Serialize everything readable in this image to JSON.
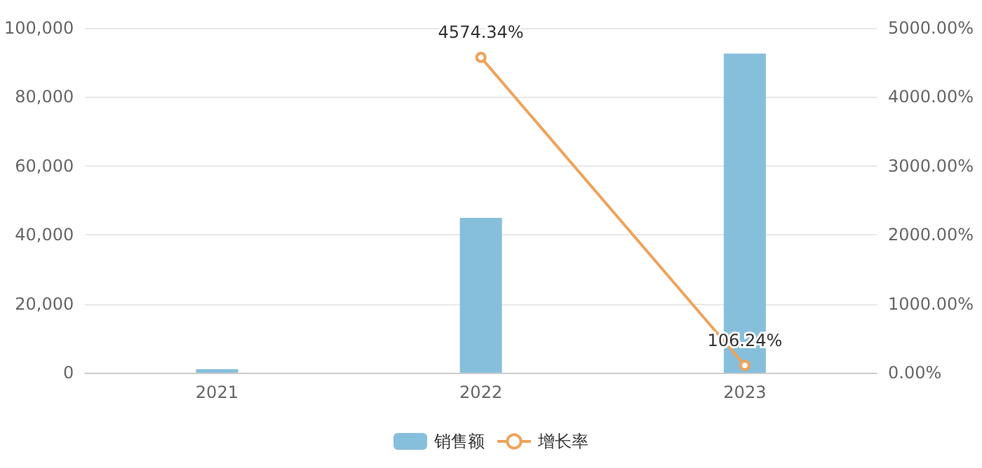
{
  "chart_data": {
    "type": "bar",
    "categories": [
      "2021",
      "2022",
      "2023"
    ],
    "series": [
      {
        "name": "销售额",
        "color": "#86bfdc",
        "values": [
          1000,
          44900,
          92600
        ]
      },
      {
        "name": "增长率",
        "type": "line",
        "axis": "y2",
        "color": "#eea35b",
        "values": [
          null,
          4574.34,
          106.24
        ],
        "value_labels": [
          null,
          "4574.34%",
          "106.24%"
        ],
        "marker": "circle"
      }
    ],
    "ylim": [
      0,
      100000
    ],
    "yticks": [
      {
        "value": 0,
        "label": "0"
      },
      {
        "value": 20000,
        "label": "20,000"
      },
      {
        "value": 40000,
        "label": "40,000"
      },
      {
        "value": 60000,
        "label": "60,000"
      },
      {
        "value": 80000,
        "label": "80,000"
      },
      {
        "value": 100000,
        "label": "100,000"
      }
    ],
    "y2lim": [
      0,
      5000
    ],
    "y2ticks": [
      {
        "value": 0,
        "label": "0.00%"
      },
      {
        "value": 1000,
        "label": "1000.00%"
      },
      {
        "value": 2000,
        "label": "2000.00%"
      },
      {
        "value": 3000,
        "label": "3000.00%"
      },
      {
        "value": 4000,
        "label": "4000.00%"
      },
      {
        "value": 5000,
        "label": "5000.00%"
      }
    ],
    "grid": "y",
    "legend": "bottom"
  }
}
